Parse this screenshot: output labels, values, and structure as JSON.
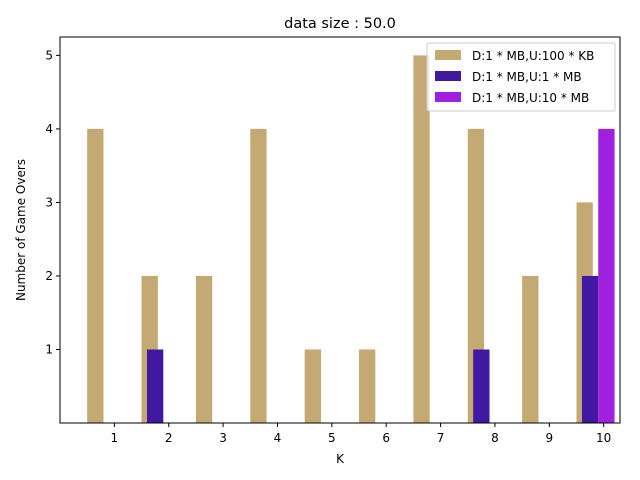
{
  "chart_data": {
    "type": "bar",
    "title": "data size : 50.0",
    "xlabel": "K",
    "ylabel": "Number of Game Overs",
    "x_ticks": [
      "1",
      "2",
      "3",
      "4",
      "5",
      "6",
      "7",
      "8",
      "9",
      "10"
    ],
    "y_ticks": [
      1,
      2,
      3,
      4,
      5
    ],
    "ylim": [
      0,
      5.25
    ],
    "xlim": [
      0,
      10.3
    ],
    "grid": false,
    "legend_position": "top-right",
    "series": [
      {
        "name": "D:1 * MB,U:100 * KB",
        "color": "#c4aa72",
        "points": [
          {
            "k": 1,
            "value": 4
          },
          {
            "k": 2,
            "value": 2
          },
          {
            "k": 3,
            "value": 2
          },
          {
            "k": 4,
            "value": 4
          },
          {
            "k": 5,
            "value": 1
          },
          {
            "k": 6,
            "value": 1
          },
          {
            "k": 7,
            "value": 5
          },
          {
            "k": 8,
            "value": 4
          },
          {
            "k": 9,
            "value": 2
          },
          {
            "k": 10,
            "value": 3
          }
        ]
      },
      {
        "name": "D:1 * MB,U:1 * MB",
        "color": "#4118a2",
        "points": [
          {
            "k": 2,
            "value": 1
          },
          {
            "k": 8,
            "value": 1
          },
          {
            "k": 10,
            "value": 2
          }
        ]
      },
      {
        "name": "D:1 * MB,U:10 * MB",
        "color": "#a020e0",
        "points": [
          {
            "k": 10,
            "value": 4
          }
        ]
      }
    ]
  }
}
